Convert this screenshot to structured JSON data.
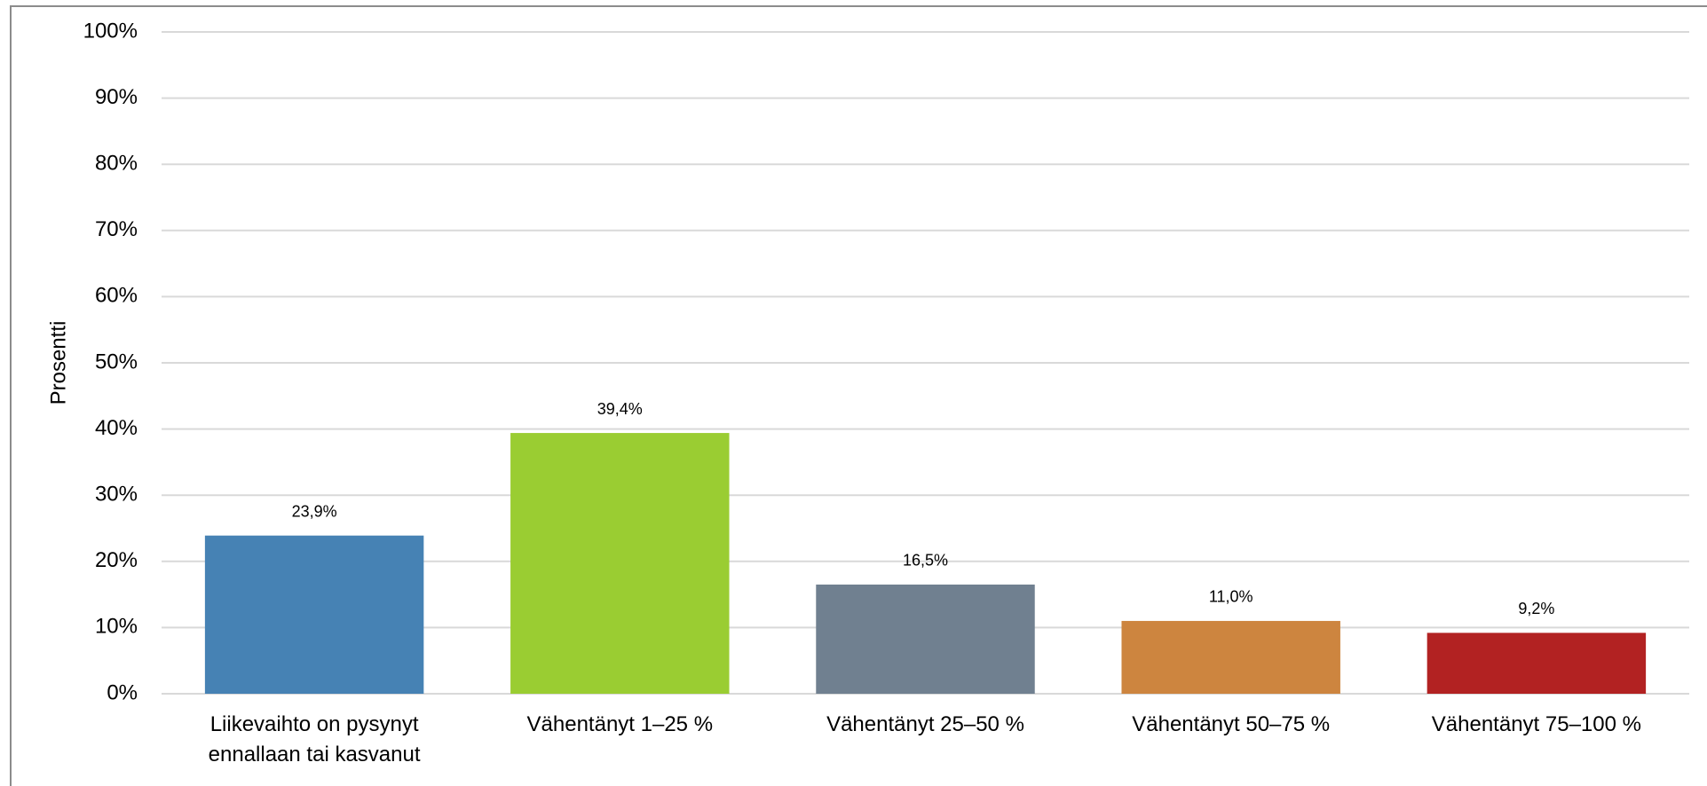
{
  "chart_data": {
    "type": "bar",
    "y_label": "Prosentti",
    "categories": [
      "Liikevaihto on pysynyt ennallaan tai kasvanut",
      "Vähentänyt 1–25 %",
      "Vähentänyt 25–50 %",
      "Vähentänyt 50–75 %",
      "Vähentänyt 75–100 %"
    ],
    "values": [
      23.9,
      39.4,
      16.5,
      11.0,
      9.2
    ],
    "value_labels": [
      "23,9%",
      "39,4%",
      "16,5%",
      "11,0%",
      "9,2%"
    ],
    "colors": [
      "#4682b4",
      "#9acd32",
      "#708090",
      "#cd853f",
      "#b22222"
    ],
    "ylim": [
      0,
      100
    ],
    "yticks": [
      {
        "value": 0,
        "label": "0%"
      },
      {
        "value": 10,
        "label": "10%"
      },
      {
        "value": 20,
        "label": "20%"
      },
      {
        "value": 30,
        "label": "30%"
      },
      {
        "value": 40,
        "label": "40%"
      },
      {
        "value": 50,
        "label": "50%"
      },
      {
        "value": 60,
        "label": "60%"
      },
      {
        "value": 70,
        "label": "70%"
      },
      {
        "value": 80,
        "label": "80%"
      },
      {
        "value": 90,
        "label": "90%"
      },
      {
        "value": 100,
        "label": "100%"
      }
    ],
    "grid": true
  }
}
